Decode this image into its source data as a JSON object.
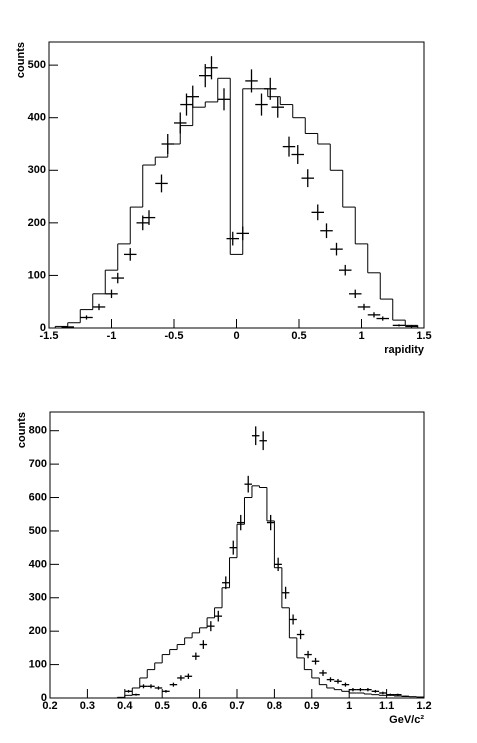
{
  "chart_data": [
    {
      "type": "histogram",
      "y_label": "counts",
      "x_label": "rapidity",
      "xlim": [
        -1.5,
        1.5
      ],
      "ylim": [
        0,
        544
      ],
      "xticks": [
        -1.5,
        -1,
        -0.5,
        0,
        0.5,
        1,
        1.5
      ],
      "yticks": [
        0,
        100,
        200,
        300,
        400,
        500
      ],
      "color": "#000000",
      "bins": [
        -1.45,
        -1.35,
        -1.25,
        -1.15,
        -1.05,
        -0.95,
        -0.85,
        -0.75,
        -0.65,
        -0.55,
        -0.45,
        -0.35,
        -0.25,
        -0.15,
        -0.05,
        0.05,
        0.15,
        0.25,
        0.35,
        0.45,
        0.55,
        0.65,
        0.75,
        0.85,
        0.95,
        1.05,
        1.15,
        1.25,
        1.35,
        1.45
      ],
      "values": [
        3,
        10,
        35,
        65,
        110,
        160,
        230,
        310,
        325,
        350,
        385,
        420,
        430,
        475,
        140,
        455,
        455,
        440,
        425,
        400,
        370,
        350,
        300,
        230,
        160,
        105,
        55,
        15,
        5
      ],
      "points": {
        "xerr": 0.05,
        "x": [
          -1.35,
          -1.2,
          -1.1,
          -1.0,
          -0.95,
          -0.85,
          -0.75,
          -0.7,
          -0.6,
          -0.55,
          -0.45,
          -0.4,
          -0.35,
          -0.25,
          -0.2,
          -0.1,
          -0.03,
          0.05,
          0.12,
          0.2,
          0.27,
          0.33,
          0.42,
          0.49,
          0.57,
          0.65,
          0.72,
          0.8,
          0.87,
          0.95,
          1.02,
          1.1,
          1.17,
          1.3,
          1.4
        ],
        "values": [
          2,
          20,
          40,
          65,
          95,
          140,
          200,
          210,
          275,
          350,
          390,
          425,
          440,
          480,
          495,
          435,
          170,
          180,
          470,
          425,
          455,
          420,
          345,
          330,
          285,
          220,
          185,
          150,
          110,
          65,
          40,
          25,
          18,
          5,
          3
        ],
        "errors": [
          1,
          4,
          6,
          8,
          10,
          12,
          14,
          14,
          17,
          19,
          20,
          21,
          21,
          22,
          22,
          21,
          13,
          13,
          22,
          21,
          21,
          20,
          19,
          18,
          17,
          15,
          14,
          12,
          10,
          8,
          6,
          5,
          4,
          2,
          2
        ]
      }
    },
    {
      "type": "histogram",
      "y_label": "counts",
      "x_label": "GeV/c²",
      "xlim": [
        0.2,
        1.2
      ],
      "ylim": [
        0,
        856
      ],
      "xticks": [
        0.2,
        0.3,
        0.4,
        0.5,
        0.6,
        0.7,
        0.8,
        0.9,
        1,
        1.1,
        1.2
      ],
      "yticks": [
        0,
        100,
        200,
        300,
        400,
        500,
        600,
        700,
        800
      ],
      "color": "#000000",
      "bins": [
        0.2,
        0.22,
        0.24,
        0.26,
        0.28,
        0.3,
        0.32,
        0.34,
        0.36,
        0.38,
        0.4,
        0.42,
        0.44,
        0.46,
        0.48,
        0.5,
        0.52,
        0.54,
        0.56,
        0.58,
        0.6,
        0.62,
        0.64,
        0.66,
        0.68,
        0.7,
        0.72,
        0.74,
        0.76,
        0.78,
        0.8,
        0.82,
        0.84,
        0.86,
        0.88,
        0.9,
        0.92,
        0.94,
        0.96,
        0.98,
        1.0,
        1.02,
        1.04,
        1.06,
        1.08,
        1.1,
        1.12,
        1.14,
        1.16,
        1.18,
        1.2
      ],
      "values": [
        0,
        0,
        0,
        0,
        0,
        0,
        0,
        0,
        0,
        2,
        8,
        30,
        60,
        85,
        105,
        130,
        145,
        160,
        180,
        195,
        210,
        240,
        270,
        330,
        420,
        520,
        600,
        635,
        630,
        530,
        390,
        270,
        180,
        120,
        85,
        60,
        40,
        30,
        25,
        20,
        15,
        15,
        12,
        10,
        8,
        8,
        6,
        5,
        4,
        3
      ],
      "points": {
        "xerr": 0.01,
        "x": [
          0.41,
          0.43,
          0.45,
          0.47,
          0.49,
          0.51,
          0.53,
          0.55,
          0.57,
          0.59,
          0.61,
          0.63,
          0.65,
          0.67,
          0.69,
          0.71,
          0.73,
          0.75,
          0.77,
          0.79,
          0.81,
          0.83,
          0.85,
          0.87,
          0.89,
          0.91,
          0.93,
          0.95,
          0.97,
          0.99,
          1.01,
          1.03,
          1.05,
          1.07,
          1.09,
          1.11,
          1.13,
          1.15
        ],
        "values": [
          20,
          10,
          35,
          35,
          30,
          20,
          40,
          60,
          65,
          125,
          160,
          215,
          245,
          345,
          450,
          525,
          640,
          785,
          770,
          525,
          400,
          315,
          235,
          190,
          130,
          110,
          75,
          55,
          50,
          40,
          25,
          25,
          25,
          20,
          15,
          10,
          10,
          5
        ],
        "errors": [
          4,
          3,
          6,
          6,
          5,
          4,
          6,
          8,
          8,
          11,
          13,
          15,
          16,
          19,
          21,
          23,
          25,
          28,
          28,
          23,
          20,
          18,
          15,
          14,
          11,
          10,
          9,
          7,
          7,
          6,
          5,
          5,
          5,
          4,
          4,
          3,
          3,
          2
        ]
      }
    }
  ]
}
